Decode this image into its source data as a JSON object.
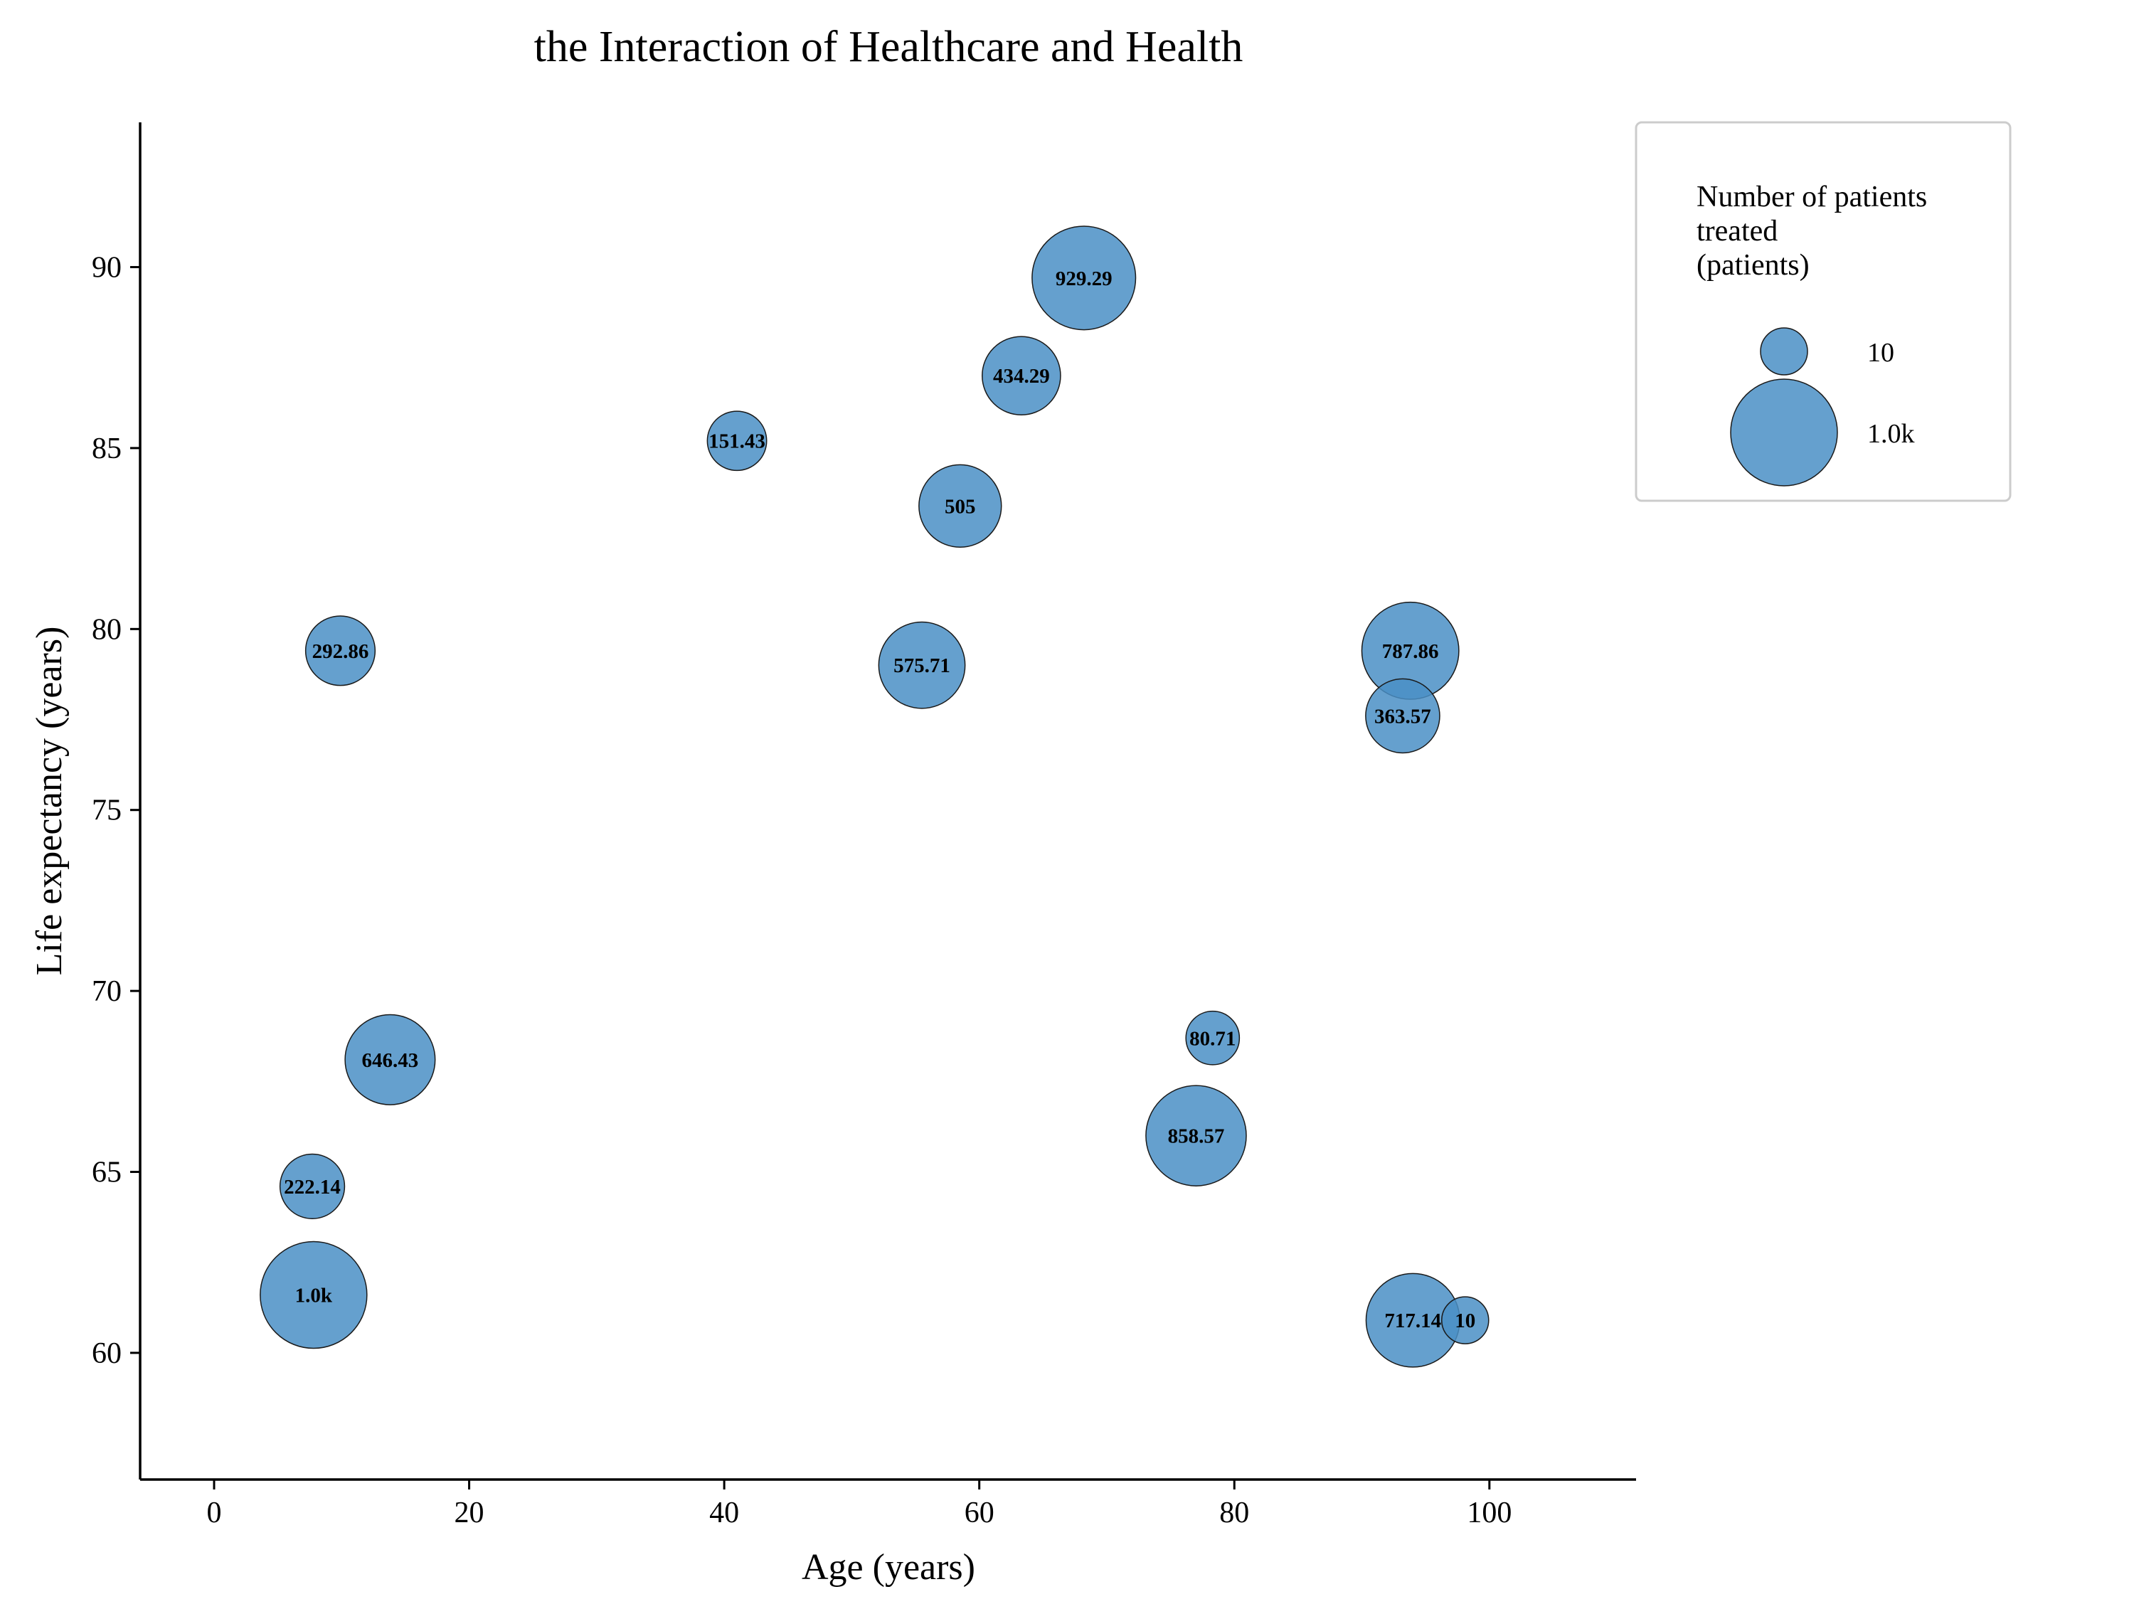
{
  "chart_data": {
    "type": "scatter",
    "title": "the Interaction of Healthcare and Health",
    "xlabel": "Age (years)",
    "ylabel": "Life expectancy (years)",
    "xlim": [
      -5.8,
      111.5
    ],
    "ylim": [
      56.5,
      94.0
    ],
    "xticks": [
      0,
      20,
      40,
      60,
      80,
      100
    ],
    "yticks": [
      60,
      65,
      70,
      75,
      80,
      85,
      90
    ],
    "xtick_labels": [
      "0",
      "20",
      "40",
      "60",
      "80",
      "100"
    ],
    "ytick_labels": [
      "60",
      "65",
      "70",
      "75",
      "80",
      "85",
      "90"
    ],
    "grid": false,
    "bubble_color": "#4a8fc6",
    "edge_color": "#1a1a1a",
    "size_range": [
      10,
      1000
    ],
    "points": [
      {
        "x": 68.2,
        "y": 89.7,
        "size": 929.29,
        "label": "929.29"
      },
      {
        "x": 63.3,
        "y": 87.0,
        "size": 434.29,
        "label": "434.29"
      },
      {
        "x": 41.0,
        "y": 85.2,
        "size": 151.43,
        "label": "151.43"
      },
      {
        "x": 58.5,
        "y": 83.4,
        "size": 505,
        "label": "505"
      },
      {
        "x": 9.9,
        "y": 79.4,
        "size": 292.86,
        "label": "292.86"
      },
      {
        "x": 55.5,
        "y": 79.0,
        "size": 575.71,
        "label": "575.71"
      },
      {
        "x": 93.8,
        "y": 79.4,
        "size": 787.86,
        "label": "787.86"
      },
      {
        "x": 93.2,
        "y": 77.6,
        "size": 363.57,
        "label": "363.57"
      },
      {
        "x": 13.8,
        "y": 68.1,
        "size": 646.43,
        "label": "646.43"
      },
      {
        "x": 78.3,
        "y": 68.7,
        "size": 80.71,
        "label": "80.71"
      },
      {
        "x": 77.0,
        "y": 66.0,
        "size": 858.57,
        "label": "858.57"
      },
      {
        "x": 7.7,
        "y": 64.6,
        "size": 222.14,
        "label": "222.14"
      },
      {
        "x": 7.8,
        "y": 61.6,
        "size": 1000,
        "label": "1.0k"
      },
      {
        "x": 94.0,
        "y": 60.9,
        "size": 717.14,
        "label": "717.14"
      },
      {
        "x": 98.1,
        "y": 60.9,
        "size": 10,
        "label": "10"
      }
    ],
    "legend": {
      "title_lines": [
        "Number of patients",
        "treated",
        "(patients)"
      ],
      "items": [
        {
          "size": 10,
          "label": "10"
        },
        {
          "size": 1000,
          "label": "1.0k"
        }
      ],
      "placement": "top-right, outside plot"
    }
  }
}
